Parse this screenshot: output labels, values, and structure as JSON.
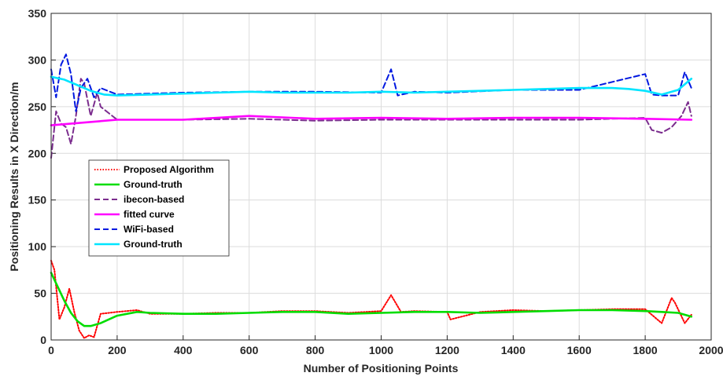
{
  "chart_data": {
    "type": "line",
    "xlabel": "Number of Positioning Points",
    "ylabel": "Positioning Results in X Direction/m",
    "xlim": [
      0,
      2000
    ],
    "ylim": [
      0,
      350
    ],
    "xticks": [
      "0",
      "200",
      "400",
      "600",
      "800",
      "1000",
      "1200",
      "1400",
      "1600",
      "1800",
      "2000"
    ],
    "yticks": [
      "0",
      "50",
      "100",
      "150",
      "200",
      "250",
      "300",
      "350"
    ],
    "grid": true,
    "legend_position": "upper-left",
    "series": [
      {
        "name": "Proposed Algorithm",
        "color": "#ff0000",
        "style": "dotted",
        "x": [
          0,
          10,
          25,
          40,
          55,
          70,
          85,
          100,
          115,
          130,
          150,
          200,
          260,
          300,
          400,
          500,
          600,
          700,
          800,
          900,
          1000,
          1030,
          1060,
          1100,
          1200,
          1210,
          1300,
          1400,
          1500,
          1600,
          1700,
          1800,
          1850,
          1880,
          1890,
          1920,
          1940
        ],
        "y": [
          85,
          75,
          22,
          35,
          55,
          30,
          10,
          2,
          5,
          3,
          28,
          30,
          32,
          28,
          28,
          29,
          29,
          31,
          31,
          29,
          31,
          48,
          30,
          31,
          30,
          22,
          30,
          32,
          31,
          32,
          33,
          33,
          18,
          45,
          40,
          18,
          27
        ]
      },
      {
        "name": "Ground-truth",
        "color": "#00dd00",
        "style": "solid",
        "x": [
          0,
          20,
          40,
          60,
          80,
          100,
          120,
          150,
          200,
          260,
          300,
          400,
          500,
          600,
          700,
          800,
          900,
          1000,
          1100,
          1200,
          1300,
          1400,
          1500,
          1600,
          1700,
          1800,
          1850,
          1900,
          1940
        ],
        "y": [
          72,
          57,
          42,
          29,
          20,
          15,
          15,
          18,
          26,
          30,
          29,
          28,
          28,
          29,
          30,
          30,
          28,
          29,
          30,
          30,
          29,
          30,
          31,
          32,
          32,
          31,
          30,
          29,
          25
        ]
      },
      {
        "name": "ibecon-based",
        "color": "#7b2d8e",
        "style": "dashed",
        "x": [
          0,
          15,
          30,
          45,
          60,
          75,
          90,
          100,
          120,
          140,
          150,
          200,
          400,
          600,
          800,
          1000,
          1200,
          1400,
          1600,
          1800,
          1820,
          1850,
          1880,
          1910,
          1930,
          1940
        ],
        "y": [
          195,
          245,
          232,
          228,
          210,
          240,
          280,
          275,
          240,
          265,
          250,
          236,
          236,
          237,
          235,
          236,
          236,
          236,
          236,
          238,
          225,
          222,
          228,
          240,
          255,
          240
        ]
      },
      {
        "name": "fitted curve",
        "color": "#ff00ff",
        "style": "solid",
        "x": [
          0,
          200,
          400,
          600,
          800,
          1000,
          1200,
          1400,
          1600,
          1800,
          1940
        ],
        "y": [
          230,
          236,
          236,
          240,
          237,
          238,
          237,
          238,
          238,
          237,
          236
        ]
      },
      {
        "name": "WiFi-based",
        "color": "#0018e0",
        "style": "dashed",
        "x": [
          0,
          15,
          30,
          45,
          60,
          75,
          90,
          110,
          130,
          150,
          200,
          400,
          600,
          800,
          1000,
          1030,
          1050,
          1100,
          1200,
          1400,
          1600,
          1800,
          1820,
          1850,
          1900,
          1920,
          1940
        ],
        "y": [
          290,
          260,
          295,
          306,
          285,
          245,
          270,
          280,
          260,
          270,
          263,
          265,
          266,
          266,
          265,
          290,
          262,
          266,
          265,
          268,
          268,
          285,
          263,
          262,
          262,
          287,
          270
        ]
      },
      {
        "name": "Ground-truth",
        "color": "#00e5ff",
        "style": "solid",
        "x": [
          0,
          40,
          80,
          120,
          160,
          200,
          300,
          400,
          500,
          600,
          700,
          800,
          900,
          1000,
          1100,
          1200,
          1300,
          1400,
          1500,
          1600,
          1700,
          1750,
          1800,
          1850,
          1900,
          1940
        ],
        "y": [
          282,
          279,
          273,
          267,
          263,
          262,
          263,
          264,
          265,
          266,
          265,
          265,
          265,
          266,
          265,
          266,
          267,
          268,
          269,
          270,
          270,
          269,
          267,
          263,
          268,
          280
        ]
      }
    ]
  }
}
